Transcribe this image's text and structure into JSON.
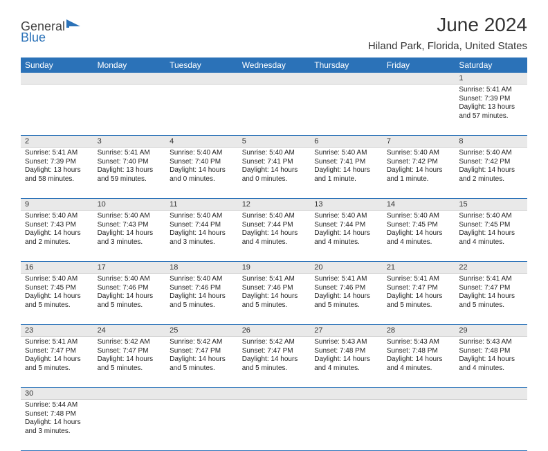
{
  "logo": {
    "text1": "General",
    "text2": "Blue",
    "shape_color": "#2b72b8"
  },
  "title": {
    "month": "June 2024",
    "location": "Hiland Park, Florida, United States"
  },
  "header_bg": "#2b72b8",
  "weekdays": [
    "Sunday",
    "Monday",
    "Tuesday",
    "Wednesday",
    "Thursday",
    "Friday",
    "Saturday"
  ],
  "weeks": [
    [
      null,
      null,
      null,
      null,
      null,
      null,
      {
        "n": "1",
        "sr": "5:41 AM",
        "ss": "7:39 PM",
        "dl": "13 hours and 57 minutes."
      }
    ],
    [
      {
        "n": "2",
        "sr": "5:41 AM",
        "ss": "7:39 PM",
        "dl": "13 hours and 58 minutes."
      },
      {
        "n": "3",
        "sr": "5:41 AM",
        "ss": "7:40 PM",
        "dl": "13 hours and 59 minutes."
      },
      {
        "n": "4",
        "sr": "5:40 AM",
        "ss": "7:40 PM",
        "dl": "14 hours and 0 minutes."
      },
      {
        "n": "5",
        "sr": "5:40 AM",
        "ss": "7:41 PM",
        "dl": "14 hours and 0 minutes."
      },
      {
        "n": "6",
        "sr": "5:40 AM",
        "ss": "7:41 PM",
        "dl": "14 hours and 1 minute."
      },
      {
        "n": "7",
        "sr": "5:40 AM",
        "ss": "7:42 PM",
        "dl": "14 hours and 1 minute."
      },
      {
        "n": "8",
        "sr": "5:40 AM",
        "ss": "7:42 PM",
        "dl": "14 hours and 2 minutes."
      }
    ],
    [
      {
        "n": "9",
        "sr": "5:40 AM",
        "ss": "7:43 PM",
        "dl": "14 hours and 2 minutes."
      },
      {
        "n": "10",
        "sr": "5:40 AM",
        "ss": "7:43 PM",
        "dl": "14 hours and 3 minutes."
      },
      {
        "n": "11",
        "sr": "5:40 AM",
        "ss": "7:44 PM",
        "dl": "14 hours and 3 minutes."
      },
      {
        "n": "12",
        "sr": "5:40 AM",
        "ss": "7:44 PM",
        "dl": "14 hours and 4 minutes."
      },
      {
        "n": "13",
        "sr": "5:40 AM",
        "ss": "7:44 PM",
        "dl": "14 hours and 4 minutes."
      },
      {
        "n": "14",
        "sr": "5:40 AM",
        "ss": "7:45 PM",
        "dl": "14 hours and 4 minutes."
      },
      {
        "n": "15",
        "sr": "5:40 AM",
        "ss": "7:45 PM",
        "dl": "14 hours and 4 minutes."
      }
    ],
    [
      {
        "n": "16",
        "sr": "5:40 AM",
        "ss": "7:45 PM",
        "dl": "14 hours and 5 minutes."
      },
      {
        "n": "17",
        "sr": "5:40 AM",
        "ss": "7:46 PM",
        "dl": "14 hours and 5 minutes."
      },
      {
        "n": "18",
        "sr": "5:40 AM",
        "ss": "7:46 PM",
        "dl": "14 hours and 5 minutes."
      },
      {
        "n": "19",
        "sr": "5:41 AM",
        "ss": "7:46 PM",
        "dl": "14 hours and 5 minutes."
      },
      {
        "n": "20",
        "sr": "5:41 AM",
        "ss": "7:46 PM",
        "dl": "14 hours and 5 minutes."
      },
      {
        "n": "21",
        "sr": "5:41 AM",
        "ss": "7:47 PM",
        "dl": "14 hours and 5 minutes."
      },
      {
        "n": "22",
        "sr": "5:41 AM",
        "ss": "7:47 PM",
        "dl": "14 hours and 5 minutes."
      }
    ],
    [
      {
        "n": "23",
        "sr": "5:41 AM",
        "ss": "7:47 PM",
        "dl": "14 hours and 5 minutes."
      },
      {
        "n": "24",
        "sr": "5:42 AM",
        "ss": "7:47 PM",
        "dl": "14 hours and 5 minutes."
      },
      {
        "n": "25",
        "sr": "5:42 AM",
        "ss": "7:47 PM",
        "dl": "14 hours and 5 minutes."
      },
      {
        "n": "26",
        "sr": "5:42 AM",
        "ss": "7:47 PM",
        "dl": "14 hours and 5 minutes."
      },
      {
        "n": "27",
        "sr": "5:43 AM",
        "ss": "7:48 PM",
        "dl": "14 hours and 4 minutes."
      },
      {
        "n": "28",
        "sr": "5:43 AM",
        "ss": "7:48 PM",
        "dl": "14 hours and 4 minutes."
      },
      {
        "n": "29",
        "sr": "5:43 AM",
        "ss": "7:48 PM",
        "dl": "14 hours and 4 minutes."
      }
    ],
    [
      {
        "n": "30",
        "sr": "5:44 AM",
        "ss": "7:48 PM",
        "dl": "14 hours and 3 minutes."
      },
      null,
      null,
      null,
      null,
      null,
      null
    ]
  ],
  "labels": {
    "sunrise": "Sunrise: ",
    "sunset": "Sunset: ",
    "daylight": "Daylight: "
  }
}
